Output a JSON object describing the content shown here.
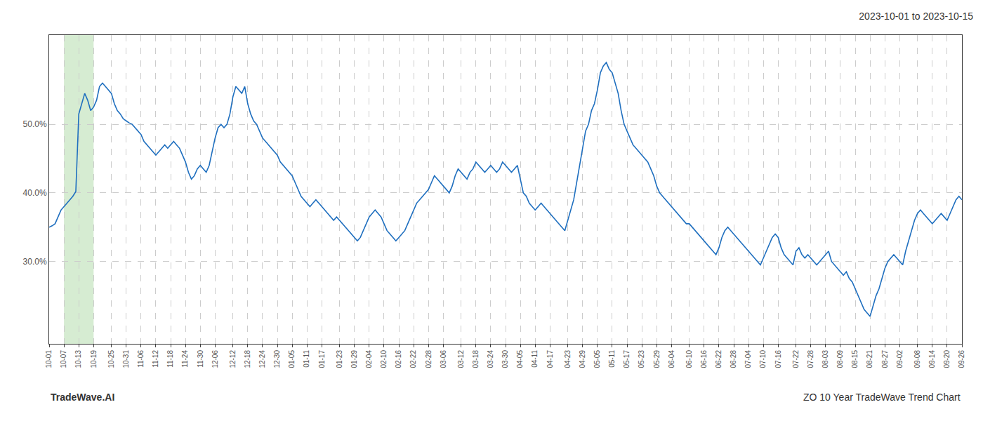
{
  "chart_data": {
    "type": "line",
    "title": "2023-10-01 to 2023-10-15",
    "annotations": [
      "TradeWave.AI",
      "ZO 10 Year TradeWave Trend Chart"
    ],
    "color": "#1f6fbf",
    "grid": true,
    "highlight": {
      "start": "10-07",
      "end": "10-19",
      "color": "#d6ecd2"
    },
    "ylim": [
      18,
      63
    ],
    "yticks": [
      {
        "value": 30.0,
        "label": "30.0%"
      },
      {
        "value": 40.0,
        "label": "40.0%"
      },
      {
        "value": 50.0,
        "label": "50.0%"
      }
    ],
    "categories": [
      "10-01",
      null,
      null,
      null,
      null,
      "10-07",
      null,
      null,
      null,
      null,
      "10-13",
      null,
      null,
      null,
      null,
      "10-19",
      null,
      null,
      null,
      null,
      null,
      "10-25",
      null,
      null,
      null,
      null,
      "10-31",
      null,
      null,
      null,
      null,
      "11-06",
      null,
      null,
      null,
      null,
      "11-12",
      null,
      null,
      null,
      null,
      "11-18",
      null,
      null,
      null,
      null,
      "11-24",
      null,
      null,
      null,
      null,
      "11-30",
      null,
      null,
      null,
      null,
      "12-06",
      null,
      null,
      null,
      null,
      null,
      "12-12",
      null,
      null,
      null,
      null,
      "12-18",
      null,
      null,
      null,
      null,
      "12-24",
      null,
      null,
      null,
      null,
      "12-30",
      null,
      null,
      null,
      null,
      "01-05",
      null,
      null,
      null,
      null,
      "01-11",
      null,
      null,
      null,
      null,
      "01-17",
      null,
      null,
      null,
      null,
      null,
      "01-23",
      null,
      null,
      null,
      null,
      "01-29",
      null,
      null,
      null,
      null,
      "02-04",
      null,
      null,
      null,
      null,
      "02-10",
      null,
      null,
      null,
      null,
      "02-16",
      null,
      null,
      null,
      null,
      "02-22",
      null,
      null,
      null,
      null,
      "02-28",
      null,
      null,
      null,
      null,
      "03-06",
      null,
      null,
      null,
      null,
      null,
      "03-12",
      null,
      null,
      null,
      null,
      "03-18",
      null,
      null,
      null,
      null,
      "03-24",
      null,
      null,
      null,
      null,
      "03-30",
      null,
      null,
      null,
      null,
      "04-05",
      null,
      null,
      null,
      null,
      "04-11",
      null,
      null,
      null,
      null,
      "04-17",
      null,
      null,
      null,
      null,
      null,
      "04-23",
      null,
      null,
      null,
      null,
      "04-29",
      null,
      null,
      null,
      null,
      "05-05",
      null,
      null,
      null,
      null,
      "05-11",
      null,
      null,
      null,
      null,
      "05-17",
      null,
      null,
      null,
      null,
      "05-23",
      null,
      null,
      null,
      null,
      "05-29",
      null,
      null,
      null,
      null,
      "06-04",
      null,
      null,
      null,
      null,
      null,
      "06-10",
      null,
      null,
      null,
      null,
      "06-16",
      null,
      null,
      null,
      null,
      "06-22",
      null,
      null,
      null,
      null,
      "06-28",
      null,
      null,
      null,
      null,
      "07-04",
      null,
      null,
      null,
      null,
      "07-10",
      null,
      null,
      null,
      null,
      "07-16",
      null,
      null,
      null,
      null,
      null,
      "07-22",
      null,
      null,
      null,
      null,
      "07-28",
      null,
      null,
      null,
      null,
      "08-03",
      null,
      null,
      null,
      null,
      "08-09",
      null,
      null,
      null,
      null,
      "08-15",
      null,
      null,
      null,
      null,
      "08-21",
      null,
      null,
      null,
      null,
      "08-27",
      null,
      null,
      null,
      null,
      "09-02",
      null,
      null,
      null,
      null,
      null,
      "09-08",
      null,
      null,
      null,
      null,
      "09-14",
      null,
      null,
      null,
      null,
      "09-20",
      null,
      null,
      null,
      null,
      "09-26"
    ],
    "values": [
      35.0,
      35.2,
      35.5,
      36.5,
      37.5,
      38.0,
      38.5,
      39.0,
      39.5,
      40.2,
      51.5,
      53.0,
      54.5,
      53.5,
      52.0,
      52.5,
      53.5,
      55.5,
      56.0,
      55.5,
      55.0,
      54.5,
      53.0,
      52.0,
      51.5,
      50.8,
      50.5,
      50.2,
      50.0,
      49.5,
      49.0,
      48.5,
      47.5,
      47.0,
      46.5,
      46.0,
      45.5,
      46.0,
      46.5,
      47.0,
      46.5,
      47.0,
      47.5,
      47.0,
      46.5,
      45.5,
      44.5,
      43.0,
      42.0,
      42.5,
      43.5,
      44.0,
      43.5,
      43.0,
      44.0,
      46.0,
      48.0,
      49.5,
      50.0,
      49.5,
      50.0,
      51.5,
      54.0,
      55.5,
      55.0,
      54.5,
      55.5,
      53.0,
      51.5,
      50.5,
      50.0,
      49.0,
      48.0,
      47.5,
      47.0,
      46.5,
      46.0,
      45.5,
      44.5,
      44.0,
      43.5,
      43.0,
      42.5,
      41.5,
      40.5,
      39.5,
      39.0,
      38.5,
      38.0,
      38.5,
      39.0,
      38.5,
      38.0,
      37.5,
      37.0,
      36.5,
      36.0,
      36.5,
      36.0,
      35.5,
      35.0,
      34.5,
      34.0,
      33.5,
      33.0,
      33.5,
      34.5,
      35.5,
      36.5,
      37.0,
      37.5,
      37.0,
      36.5,
      35.5,
      34.5,
      34.0,
      33.5,
      33.0,
      33.5,
      34.0,
      34.5,
      35.5,
      36.5,
      37.5,
      38.5,
      39.0,
      39.5,
      40.0,
      40.5,
      41.5,
      42.5,
      42.0,
      41.5,
      41.0,
      40.5,
      40.0,
      41.0,
      42.5,
      43.5,
      43.0,
      42.5,
      42.0,
      43.0,
      43.5,
      44.5,
      44.0,
      43.5,
      43.0,
      43.5,
      44.0,
      43.5,
      43.0,
      43.5,
      44.5,
      44.0,
      43.5,
      43.0,
      43.5,
      44.0,
      42.0,
      40.0,
      39.5,
      38.5,
      38.0,
      37.5,
      38.0,
      38.5,
      38.0,
      37.5,
      37.0,
      36.5,
      36.0,
      35.5,
      35.0,
      34.5,
      36.0,
      37.5,
      39.0,
      41.5,
      44.0,
      46.5,
      49.0,
      50.0,
      52.0,
      53.0,
      55.0,
      57.5,
      58.5,
      59.0,
      58.0,
      57.5,
      56.0,
      54.5,
      52.0,
      50.0,
      49.0,
      48.0,
      47.0,
      46.5,
      46.0,
      45.5,
      45.0,
      44.5,
      43.5,
      42.5,
      41.0,
      40.0,
      39.5,
      39.0,
      38.5,
      38.0,
      37.5,
      37.0,
      36.5,
      36.0,
      35.5,
      35.5,
      35.0,
      34.5,
      34.0,
      33.5,
      33.0,
      32.5,
      32.0,
      31.5,
      31.0,
      32.0,
      33.5,
      34.5,
      35.0,
      34.5,
      34.0,
      33.5,
      33.0,
      32.5,
      32.0,
      31.5,
      31.0,
      30.5,
      30.0,
      29.5,
      30.5,
      31.5,
      32.5,
      33.5,
      34.0,
      33.5,
      32.0,
      31.0,
      30.5,
      30.0,
      29.5,
      31.5,
      32.0,
      31.0,
      30.5,
      31.0,
      30.5,
      30.0,
      29.5,
      30.0,
      30.5,
      31.0,
      31.5,
      30.0,
      29.5,
      29.0,
      28.5,
      28.0,
      28.5,
      27.5,
      27.0,
      26.0,
      25.0,
      24.0,
      23.0,
      22.5,
      22.0,
      23.5,
      25.0,
      26.0,
      27.5,
      29.0,
      30.0,
      30.5,
      31.0,
      30.5,
      30.0,
      29.5,
      31.5,
      33.0,
      34.5,
      36.0,
      37.0,
      37.5,
      37.0,
      36.5,
      36.0,
      35.5,
      36.0,
      36.5,
      37.0,
      36.5,
      36.0,
      37.0,
      38.0,
      39.0,
      39.5,
      39.0
    ]
  }
}
